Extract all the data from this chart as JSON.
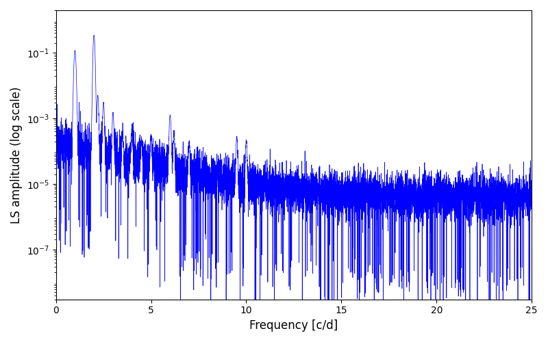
{
  "title": "",
  "xlabel": "Frequency [c/d]",
  "ylabel": "LS amplitude (log scale)",
  "xlim": [
    0,
    25
  ],
  "ylim": [
    3e-09,
    2.0
  ],
  "line_color": "#0000ff",
  "line_width": 0.5,
  "background_color": "#ffffff",
  "figsize": [
    8.0,
    5.0
  ],
  "dpi": 100,
  "yscale": "log",
  "yticks": [
    1e-07,
    1e-05,
    0.001,
    0.1
  ],
  "xticks": [
    0,
    5,
    10,
    15,
    20,
    25
  ]
}
